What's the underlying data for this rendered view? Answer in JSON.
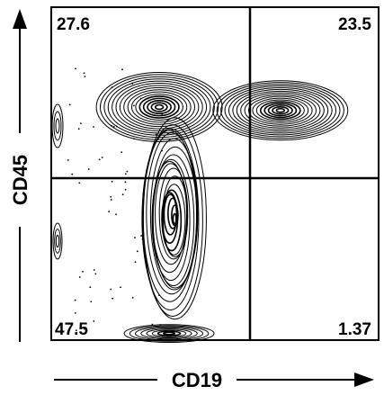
{
  "chart_data": {
    "type": "contour",
    "xlabel": "CD19",
    "ylabel": "CD45",
    "quadrants": [
      {
        "position": "upper-left",
        "value": "27.6"
      },
      {
        "position": "upper-right",
        "value": "23.5"
      },
      {
        "position": "lower-left",
        "value": "47.5"
      },
      {
        "position": "lower-right",
        "value": "1.37"
      }
    ],
    "populations": [
      {
        "name_hint": "CD19-CD45+ cluster",
        "cx": 0.33,
        "cy": 0.7,
        "density": 0.8
      },
      {
        "name_hint": "CD19+CD45+ cluster",
        "cx": 0.7,
        "cy": 0.69,
        "density": 1.0
      },
      {
        "name_hint": "CD19-CD45low cluster",
        "cx": 0.37,
        "cy": 0.37,
        "density": 1.0
      },
      {
        "name_hint": "CD19-CD45- cluster",
        "cx": 0.36,
        "cy": 0.02,
        "density": 0.7
      }
    ],
    "grid": false,
    "legend": "none"
  },
  "colors": {
    "ink": "#000000",
    "background": "#ffffff"
  }
}
